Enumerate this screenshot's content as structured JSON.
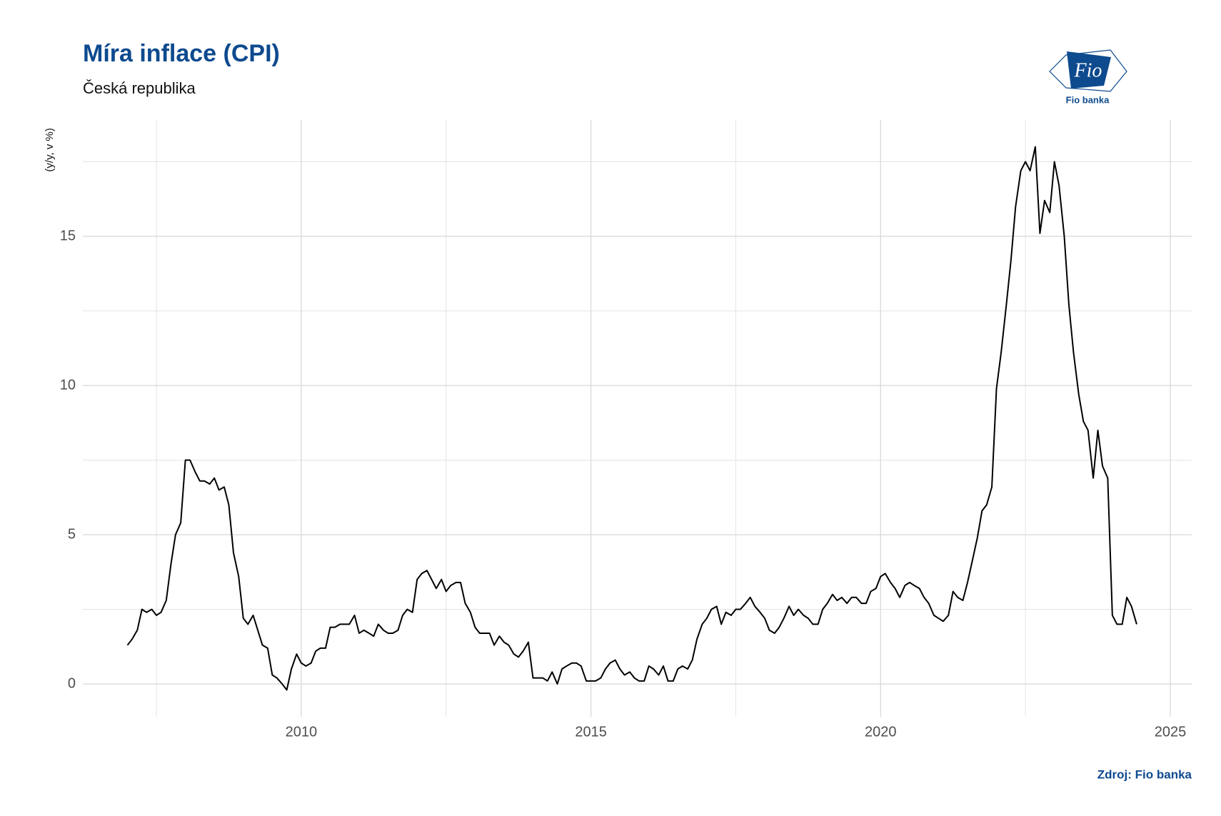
{
  "chart_data": {
    "type": "line",
    "title": "Míra inflace (CPI)",
    "subtitle": "Česká republika",
    "y_label": "(y/y, v %)",
    "source": "Zdroj: Fio banka",
    "logo": {
      "mark": "Fio",
      "name": "Fio banka"
    },
    "xlim": [
      2006.23,
      2025.37
    ],
    "xticks": [
      2010,
      2015,
      2020,
      2025
    ],
    "ylim": [
      -1.1,
      18.9
    ],
    "yticks": [
      0,
      5,
      10,
      15
    ],
    "grid": true,
    "x": [
      2007.0,
      2007.08,
      2007.17,
      2007.25,
      2007.33,
      2007.42,
      2007.5,
      2007.58,
      2007.67,
      2007.75,
      2007.83,
      2007.92,
      2008.0,
      2008.08,
      2008.17,
      2008.25,
      2008.33,
      2008.42,
      2008.5,
      2008.58,
      2008.67,
      2008.75,
      2008.83,
      2008.92,
      2009.0,
      2009.08,
      2009.17,
      2009.25,
      2009.33,
      2009.42,
      2009.5,
      2009.58,
      2009.67,
      2009.75,
      2009.83,
      2009.92,
      2010.0,
      2010.08,
      2010.17,
      2010.25,
      2010.33,
      2010.42,
      2010.5,
      2010.58,
      2010.67,
      2010.75,
      2010.83,
      2010.92,
      2011.0,
      2011.08,
      2011.17,
      2011.25,
      2011.33,
      2011.42,
      2011.5,
      2011.58,
      2011.67,
      2011.75,
      2011.83,
      2011.92,
      2012.0,
      2012.08,
      2012.17,
      2012.25,
      2012.33,
      2012.42,
      2012.5,
      2012.58,
      2012.67,
      2012.75,
      2012.83,
      2012.92,
      2013.0,
      2013.08,
      2013.17,
      2013.25,
      2013.33,
      2013.42,
      2013.5,
      2013.58,
      2013.67,
      2013.75,
      2013.83,
      2013.92,
      2014.0,
      2014.08,
      2014.17,
      2014.25,
      2014.33,
      2014.42,
      2014.5,
      2014.58,
      2014.67,
      2014.75,
      2014.83,
      2014.92,
      2015.0,
      2015.08,
      2015.17,
      2015.25,
      2015.33,
      2015.42,
      2015.5,
      2015.58,
      2015.67,
      2015.75,
      2015.83,
      2015.92,
      2016.0,
      2016.08,
      2016.17,
      2016.25,
      2016.33,
      2016.42,
      2016.5,
      2016.58,
      2016.67,
      2016.75,
      2016.83,
      2016.92,
      2017.0,
      2017.08,
      2017.17,
      2017.25,
      2017.33,
      2017.42,
      2017.5,
      2017.58,
      2017.67,
      2017.75,
      2017.83,
      2017.92,
      2018.0,
      2018.08,
      2018.17,
      2018.25,
      2018.33,
      2018.42,
      2018.5,
      2018.58,
      2018.67,
      2018.75,
      2018.83,
      2018.92,
      2019.0,
      2019.08,
      2019.17,
      2019.25,
      2019.33,
      2019.42,
      2019.5,
      2019.58,
      2019.67,
      2019.75,
      2019.83,
      2019.92,
      2020.0,
      2020.08,
      2020.17,
      2020.25,
      2020.33,
      2020.42,
      2020.5,
      2020.58,
      2020.67,
      2020.75,
      2020.83,
      2020.92,
      2021.0,
      2021.08,
      2021.17,
      2021.25,
      2021.33,
      2021.42,
      2021.5,
      2021.58,
      2021.67,
      2021.75,
      2021.83,
      2021.92,
      2022.0,
      2022.08,
      2022.17,
      2022.25,
      2022.33,
      2022.42,
      2022.5,
      2022.58,
      2022.67,
      2022.75,
      2022.83,
      2022.92,
      2023.0,
      2023.08,
      2023.17,
      2023.25,
      2023.33,
      2023.42,
      2023.5,
      2023.58,
      2023.67,
      2023.75,
      2023.83,
      2023.92,
      2024.0,
      2024.08,
      2024.17,
      2024.25,
      2024.33,
      2024.42
    ],
    "series": [
      {
        "color": "#000000",
        "values": [
          1.3,
          1.5,
          1.8,
          2.5,
          2.4,
          2.5,
          2.3,
          2.4,
          2.8,
          4.0,
          5.0,
          5.4,
          7.5,
          7.5,
          7.1,
          6.8,
          6.8,
          6.7,
          6.9,
          6.5,
          6.6,
          6.0,
          4.4,
          3.6,
          2.2,
          2.0,
          2.3,
          1.8,
          1.3,
          1.2,
          0.3,
          0.2,
          0.0,
          -0.2,
          0.5,
          1.0,
          0.7,
          0.6,
          0.7,
          1.1,
          1.2,
          1.2,
          1.9,
          1.9,
          2.0,
          2.0,
          2.0,
          2.3,
          1.7,
          1.8,
          1.7,
          1.6,
          2.0,
          1.8,
          1.7,
          1.7,
          1.8,
          2.3,
          2.5,
          2.4,
          3.5,
          3.7,
          3.8,
          3.5,
          3.2,
          3.5,
          3.1,
          3.3,
          3.4,
          3.4,
          2.7,
          2.4,
          1.9,
          1.7,
          1.7,
          1.7,
          1.3,
          1.6,
          1.4,
          1.3,
          1.0,
          0.9,
          1.1,
          1.4,
          0.2,
          0.2,
          0.2,
          0.1,
          0.4,
          0.0,
          0.5,
          0.6,
          0.7,
          0.7,
          0.6,
          0.1,
          0.1,
          0.1,
          0.2,
          0.5,
          0.7,
          0.8,
          0.5,
          0.3,
          0.4,
          0.2,
          0.1,
          0.1,
          0.6,
          0.5,
          0.3,
          0.6,
          0.1,
          0.1,
          0.5,
          0.6,
          0.5,
          0.8,
          1.5,
          2.0,
          2.2,
          2.5,
          2.6,
          2.0,
          2.4,
          2.3,
          2.5,
          2.5,
          2.7,
          2.9,
          2.6,
          2.4,
          2.2,
          1.8,
          1.7,
          1.9,
          2.2,
          2.6,
          2.3,
          2.5,
          2.3,
          2.2,
          2.0,
          2.0,
          2.5,
          2.7,
          3.0,
          2.8,
          2.9,
          2.7,
          2.9,
          2.9,
          2.7,
          2.7,
          3.1,
          3.2,
          3.6,
          3.7,
          3.4,
          3.2,
          2.9,
          3.3,
          3.4,
          3.3,
          3.2,
          2.9,
          2.7,
          2.3,
          2.2,
          2.1,
          2.3,
          3.1,
          2.9,
          2.8,
          3.4,
          4.1,
          4.9,
          5.8,
          6.0,
          6.6,
          9.9,
          11.1,
          12.7,
          14.2,
          16.0,
          17.2,
          17.5,
          17.2,
          18.0,
          15.1,
          16.2,
          15.8,
          17.5,
          16.7,
          15.0,
          12.7,
          11.1,
          9.7,
          8.8,
          8.5,
          6.9,
          8.5,
          7.3,
          6.9,
          2.3,
          2.0,
          2.0,
          2.9,
          2.6,
          2.0
        ]
      }
    ]
  }
}
